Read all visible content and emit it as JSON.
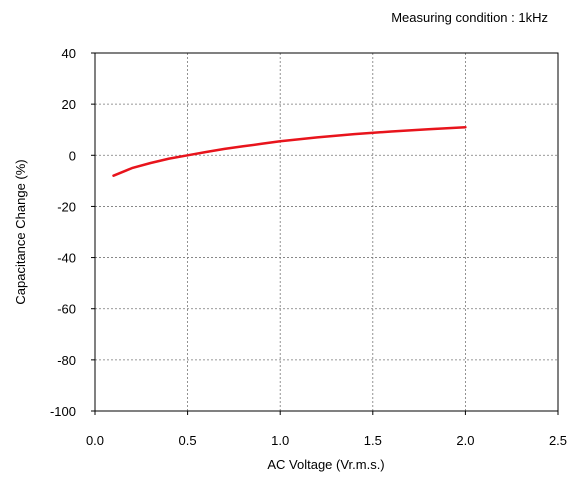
{
  "chart_data": {
    "type": "line",
    "title": "",
    "annotation": "Measuring condition  :  1kHz",
    "xlabel": "AC Voltage (Vr.m.s.)",
    "ylabel": "Capacitance Change (%)",
    "xlim": [
      0.0,
      2.5
    ],
    "ylim": [
      -100,
      40
    ],
    "xticks": [
      "0.0",
      "0.5",
      "1.0",
      "1.5",
      "2.0",
      "2.5"
    ],
    "yticks": [
      "40",
      "20",
      "0",
      "-20",
      "-40",
      "-60",
      "-80",
      "-100"
    ],
    "grid": true,
    "series": [
      {
        "color": "#e8141c",
        "x": [
          0.1,
          0.2,
          0.3,
          0.4,
          0.5,
          0.6,
          0.7,
          0.8,
          0.9,
          1.0,
          1.2,
          1.4,
          1.6,
          1.8,
          2.0
        ],
        "y": [
          -8,
          -5,
          -3,
          -1.3,
          0,
          1.3,
          2.5,
          3.5,
          4.5,
          5.5,
          7,
          8.3,
          9.3,
          10.2,
          11
        ]
      }
    ]
  }
}
